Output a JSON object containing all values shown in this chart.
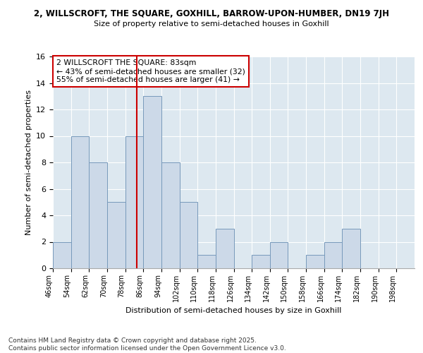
{
  "title1": "2, WILLSCROFT, THE SQUARE, GOXHILL, BARROW-UPON-HUMBER, DN19 7JH",
  "title2": "Size of property relative to semi-detached houses in Goxhill",
  "xlabel": "Distribution of semi-detached houses by size in Goxhill",
  "ylabel": "Number of semi-detached properties",
  "bin_edges": [
    46,
    54,
    62,
    70,
    78,
    86,
    94,
    102,
    110,
    118,
    126,
    134,
    142,
    150,
    158,
    166,
    174,
    182,
    190,
    198,
    206
  ],
  "counts": [
    2,
    10,
    8,
    5,
    10,
    13,
    8,
    5,
    1,
    3,
    0,
    1,
    2,
    0,
    1,
    2,
    3,
    0,
    0,
    0
  ],
  "property_size": 83,
  "annotation_title": "2 WILLSCROFT THE SQUARE: 83sqm",
  "annotation_line1": "← 43% of semi-detached houses are smaller (32)",
  "annotation_line2": "55% of semi-detached houses are larger (41) →",
  "bar_color": "#ccd9e8",
  "bar_edge_color": "#7799bb",
  "ref_line_color": "#cc0000",
  "annotation_box_color": "#ffffff",
  "annotation_box_edge": "#cc0000",
  "plot_bg_color": "#dde8f0",
  "fig_bg_color": "#ffffff",
  "ylim": [
    0,
    16
  ],
  "yticks": [
    0,
    2,
    4,
    6,
    8,
    10,
    12,
    14,
    16
  ],
  "footer": "Contains HM Land Registry data © Crown copyright and database right 2025.\nContains public sector information licensed under the Open Government Licence v3.0."
}
